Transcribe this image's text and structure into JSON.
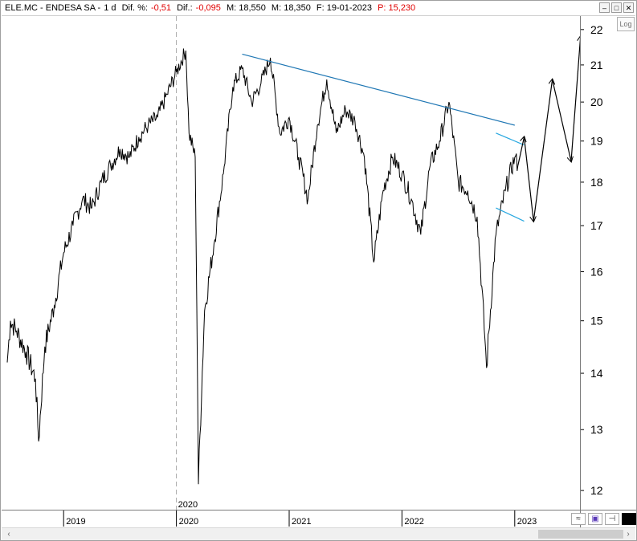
{
  "header": {
    "symbol": "ELE.MC - ENDESA SA - ",
    "timeframe": "1 d",
    "dif_pct_label": "Dif. %:",
    "dif_pct_value": "-0,51",
    "dif_label": "Dif.:",
    "dif_value": "-0,095",
    "m_label": "M: 18,550",
    "m2_label": "M: 18,350",
    "date_label": "F: 19-01-2023",
    "p_label": "P: 15,230"
  },
  "toolbar": {
    "log_label": "Log"
  },
  "colors": {
    "price_line": "#000000",
    "trendline": "#1f77b4",
    "channel": "#29a8e0",
    "negative": "#e00000"
  },
  "chart_data": {
    "type": "line",
    "title": "ELE.MC - ENDESA SA",
    "ylim": [
      11.8,
      22.3
    ],
    "y_scale": "log",
    "y_ticks": [
      12,
      13,
      14,
      15,
      16,
      17,
      18,
      19,
      20,
      21,
      22
    ],
    "x_ticks": [
      "2019",
      "2020",
      "2021",
      "2022",
      "2023"
    ],
    "x_marker_label": "2020",
    "series": [
      {
        "values": [
          [
            "2018-07",
            14.2
          ],
          [
            "2018-07",
            15.0
          ],
          [
            "2018-08",
            14.8
          ],
          [
            "2018-09",
            14.4
          ],
          [
            "2018-10",
            13.9
          ],
          [
            "2018-10",
            12.8
          ],
          [
            "2018-11",
            14.5
          ],
          [
            "2018-12",
            15.3
          ],
          [
            "2019-01",
            16.4
          ],
          [
            "2019-02",
            17.0
          ],
          [
            "2019-03",
            17.6
          ],
          [
            "2019-04",
            17.4
          ],
          [
            "2019-05",
            18.0
          ],
          [
            "2019-06",
            18.4
          ],
          [
            "2019-07",
            18.8
          ],
          [
            "2019-08",
            18.6
          ],
          [
            "2019-09",
            19.1
          ],
          [
            "2019-10",
            19.4
          ],
          [
            "2019-11",
            19.6
          ],
          [
            "2019-12",
            20.2
          ],
          [
            "2020-01",
            20.8
          ],
          [
            "2020-02",
            21.4
          ],
          [
            "2020-02",
            19.2
          ],
          [
            "2020-03",
            18.6
          ],
          [
            "2020-03",
            12.1
          ],
          [
            "2020-04",
            15.2
          ],
          [
            "2020-05",
            16.6
          ],
          [
            "2020-06",
            18.2
          ],
          [
            "2020-07",
            20.4
          ],
          [
            "2020-08",
            20.9
          ],
          [
            "2020-09",
            20.0
          ],
          [
            "2020-10",
            20.5
          ],
          [
            "2020-11",
            21.2
          ],
          [
            "2020-12",
            19.2
          ],
          [
            "2021-01",
            19.6
          ],
          [
            "2021-02",
            18.6
          ],
          [
            "2021-03",
            17.6
          ],
          [
            "2021-04",
            19.4
          ],
          [
            "2021-05",
            20.6
          ],
          [
            "2021-06",
            19.2
          ],
          [
            "2021-07",
            19.8
          ],
          [
            "2021-08",
            19.5
          ],
          [
            "2021-09",
            18.6
          ],
          [
            "2021-10",
            16.2
          ],
          [
            "2021-11",
            17.8
          ],
          [
            "2021-12",
            18.6
          ],
          [
            "2022-01",
            18.2
          ],
          [
            "2022-02",
            17.6
          ],
          [
            "2022-03",
            16.8
          ],
          [
            "2022-04",
            18.4
          ],
          [
            "2022-05",
            19.0
          ],
          [
            "2022-06",
            20.0
          ],
          [
            "2022-07",
            18.0
          ],
          [
            "2022-08",
            17.8
          ],
          [
            "2022-09",
            17.2
          ],
          [
            "2022-10",
            14.1
          ],
          [
            "2022-11",
            16.8
          ],
          [
            "2022-12",
            17.8
          ],
          [
            "2023-01",
            18.6
          ],
          [
            "2023-01",
            18.4
          ]
        ]
      }
    ],
    "annotations": {
      "trendline": [
        [
          "2020-08",
          21.3
        ],
        [
          "2023-01",
          19.4
        ]
      ],
      "channel_upper": [
        [
          "2022-11",
          19.2
        ],
        [
          "2023-02",
          18.9
        ]
      ],
      "channel_lower": [
        [
          "2022-11",
          17.4
        ],
        [
          "2023-02",
          17.1
        ]
      ],
      "projection": [
        [
          "2023-01",
          18.4
        ],
        [
          "2023-02",
          19.1
        ],
        [
          "2023-03",
          17.1
        ],
        [
          "2023-05",
          20.6
        ],
        [
          "2023-07",
          18.5
        ],
        [
          "2023-08",
          21.8
        ]
      ]
    }
  }
}
